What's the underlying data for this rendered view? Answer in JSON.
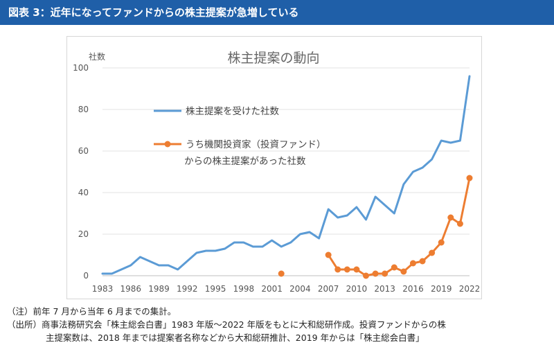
{
  "header": {
    "title": "図表 3：近年になってファンドからの株主提案が急増している"
  },
  "chart_data": {
    "type": "line",
    "title": "株主提案の動向",
    "ylabel": "社数",
    "xlabel": "",
    "ylim": [
      0,
      100
    ],
    "yticks": [
      0,
      20,
      40,
      60,
      80,
      100
    ],
    "xlim": [
      1983,
      2022
    ],
    "xticks": [
      1983,
      1986,
      1989,
      1992,
      1995,
      1998,
      2001,
      2004,
      2007,
      2010,
      2013,
      2016,
      2019,
      2022
    ],
    "legend_position": "upper-left",
    "series": [
      {
        "name": "株主提案を受けた社数",
        "legend_lines": [
          "株主提案を受けた社数"
        ],
        "color": "#5b9bd5",
        "marker": false,
        "x": [
          1983,
          1984,
          1985,
          1986,
          1987,
          1988,
          1989,
          1990,
          1991,
          1992,
          1993,
          1994,
          1995,
          1996,
          1997,
          1998,
          1999,
          2000,
          2001,
          2002,
          2003,
          2004,
          2005,
          2006,
          2007,
          2008,
          2009,
          2010,
          2011,
          2012,
          2013,
          2014,
          2015,
          2016,
          2017,
          2018,
          2019,
          2020,
          2021,
          2022
        ],
        "values": [
          1,
          1,
          3,
          5,
          9,
          7,
          5,
          5,
          3,
          7,
          11,
          12,
          12,
          13,
          16,
          16,
          14,
          14,
          17,
          14,
          16,
          20,
          21,
          18,
          32,
          28,
          29,
          33,
          27,
          38,
          34,
          30,
          44,
          50,
          52,
          56,
          65,
          64,
          65,
          96
        ]
      },
      {
        "name": "うち機関投資家（投資ファンド）からの株主提案があった社数",
        "legend_lines": [
          "うち機関投資家（投資ファンド）",
          "からの株主提案があった社数"
        ],
        "color": "#ed7d31",
        "marker": true,
        "x": [
          2002,
          2007,
          2008,
          2009,
          2010,
          2011,
          2012,
          2013,
          2014,
          2015,
          2016,
          2017,
          2018,
          2019,
          2020,
          2021,
          2022
        ],
        "values": [
          1,
          10,
          3,
          3,
          3,
          0,
          1,
          1,
          4,
          2,
          6,
          7,
          11,
          16,
          28,
          25,
          47
        ]
      }
    ]
  },
  "notes": {
    "note1": "（注）前年 7 月から当年 6 月までの集計。",
    "note2": "（出所）商事法務研究会「株主総会白書」1983 年版～2022 年版をもとに大和総研作成。投資ファンドからの株",
    "note3": "主提案数は、2018 年までは提案者名称などから大和総研推計、2019 年からは「株主総会白書」"
  }
}
